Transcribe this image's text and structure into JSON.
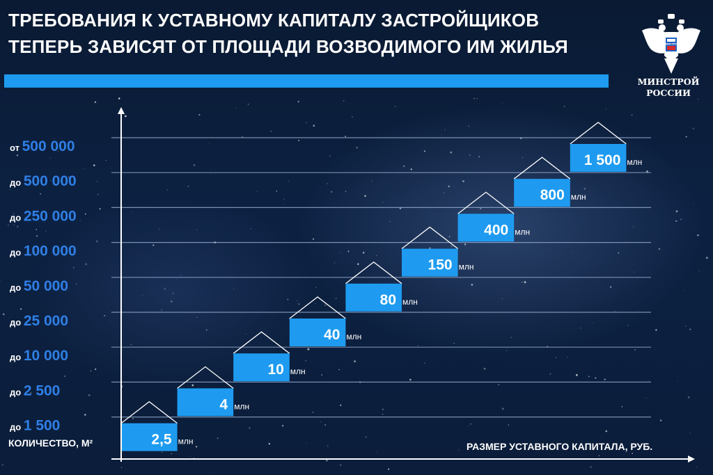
{
  "title": {
    "line1": "ТРЕБОВАНИЯ К УСТАВНОМУ КАПИТАЛУ ЗАСТРОЙЩИКОВ",
    "line2": "ТЕПЕРЬ ЗАВИСЯТ ОТ ПЛОЩАДИ ВОЗВОДИМОГО ИМ ЖИЛЬЯ"
  },
  "logo": {
    "icon": "double-headed-eagle-emblem",
    "text_line1": "МИНСТРОЙ",
    "text_line2": "РОССИИ",
    "emblem_text": "МИНСТРОЙ"
  },
  "colors": {
    "background": "#0b1d3a",
    "accent": "#1e9bf0",
    "axis_text": "#ffffff",
    "tick_number": "#2f7fe6"
  },
  "chart_data": {
    "type": "bar",
    "title": "ТРЕБОВАНИЯ К УСТАВНОМУ КАПИТАЛУ ЗАСТРОЙЩИКОВ ТЕПЕРЬ ЗАВИСЯТ ОТ ПЛОЩАДИ ВОЗВОДИМОГО ИМ ЖИЛЬЯ",
    "ylabel": "КОЛИЧЕСТВО, М²",
    "xlabel": "РАЗМЕР УСТАВНОГО КАПИТАЛА, РУБ.",
    "grid": true,
    "categories": [
      {
        "prefix": "до",
        "value": "1 500"
      },
      {
        "prefix": "до",
        "value": "2 500"
      },
      {
        "prefix": "до",
        "value": "10 000"
      },
      {
        "prefix": "до",
        "value": "25 000"
      },
      {
        "prefix": "до",
        "value": "50 000"
      },
      {
        "prefix": "до",
        "value": "100 000"
      },
      {
        "prefix": "до",
        "value": "250 000"
      },
      {
        "prefix": "до",
        "value": "500 000"
      },
      {
        "prefix": "от",
        "value": "500 000"
      }
    ],
    "series": [
      {
        "unit": "млн",
        "labels": [
          "2,5",
          "4",
          "10",
          "40",
          "80",
          "150",
          "400",
          "800",
          "1 500"
        ],
        "values": [
          2.5,
          4,
          10,
          40,
          80,
          150,
          400,
          800,
          1500
        ]
      }
    ]
  }
}
